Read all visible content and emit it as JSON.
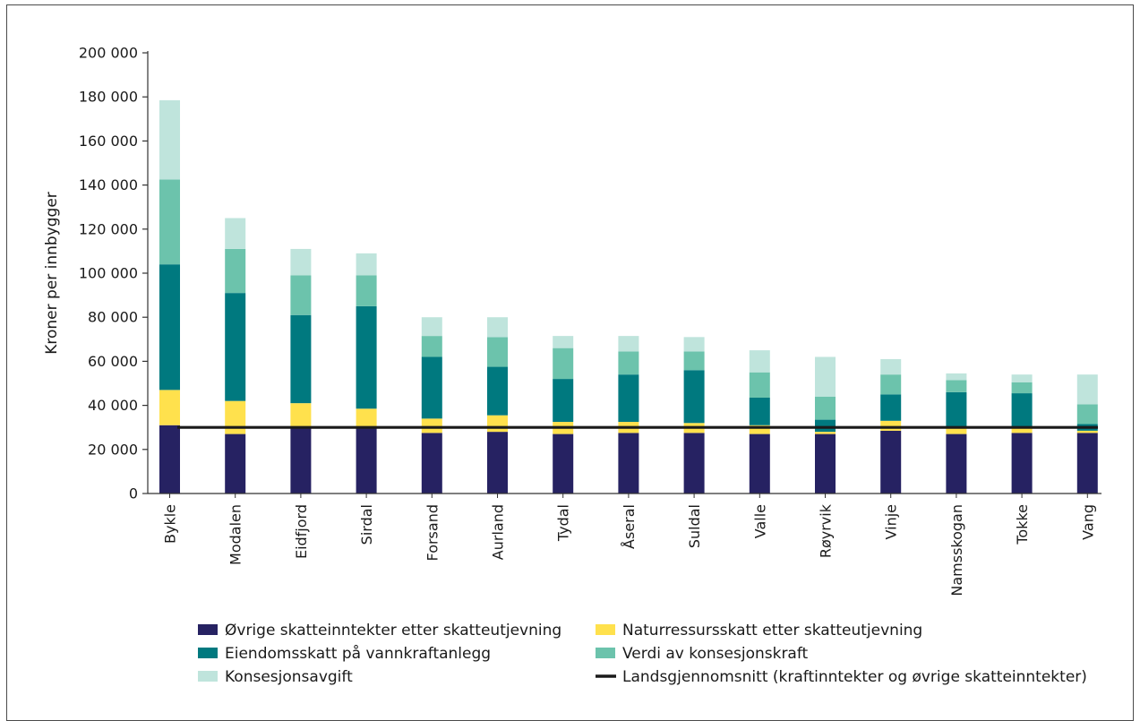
{
  "chart_data": {
    "type": "bar",
    "stacked": true,
    "title": "",
    "xlabel": "",
    "ylabel": "Kroner per innbygger",
    "ylim": [
      0,
      200000
    ],
    "yticks": [
      0,
      20000,
      40000,
      60000,
      80000,
      100000,
      120000,
      140000,
      160000,
      180000,
      200000
    ],
    "ytick_labels": [
      "0",
      "20 000",
      "40 000",
      "60 000",
      "80 000",
      "100 000",
      "120 000",
      "140 000",
      "160 000",
      "180 000",
      "200 000"
    ],
    "grid": false,
    "legend_position": "bottom",
    "categories": [
      "Bykle",
      "Modalen",
      "Eidfjord",
      "Sirdal",
      "Forsand",
      "Aurland",
      "Tydal",
      "Åseral",
      "Suldal",
      "Valle",
      "Røyrvik",
      "Vinje",
      "Namsskogan",
      "Tokke",
      "Vang"
    ],
    "series": [
      {
        "name": "Øvrige skatteinntekter etter skatteutjevning",
        "color": "#262262",
        "values": [
          31000,
          27000,
          30000,
          30500,
          27500,
          28000,
          27000,
          27500,
          27500,
          27000,
          27000,
          28500,
          27000,
          27500,
          27500
        ]
      },
      {
        "name": "Naturressursskatt etter skatteutjevning",
        "color": "#ffe14d",
        "values": [
          16000,
          15000,
          11000,
          8000,
          6500,
          7500,
          5500,
          5000,
          4500,
          4000,
          1000,
          4500,
          3500,
          3000,
          1000
        ]
      },
      {
        "name": "Eiendomsskatt på vannkraftanlegg",
        "color": "#00797f",
        "values": [
          57000,
          49000,
          40000,
          46500,
          28000,
          22000,
          19500,
          21500,
          24000,
          12500,
          5500,
          12000,
          15500,
          15000,
          3000
        ]
      },
      {
        "name": "Verdi av konsesjonskraft",
        "color": "#6cc3ac",
        "values": [
          38500,
          20000,
          18000,
          14000,
          9500,
          13500,
          14000,
          10500,
          8500,
          11500,
          10500,
          9000,
          5500,
          5000,
          9000
        ]
      },
      {
        "name": "Konsesjonsavgift",
        "color": "#bfe4dc",
        "values": [
          36000,
          14000,
          12000,
          10000,
          8500,
          9000,
          5500,
          7000,
          6500,
          10000,
          18000,
          7000,
          3000,
          3500,
          13500
        ]
      }
    ],
    "line": {
      "name": "Landsgjennomsnitt (kraftinntekter og øvrige skatteinntekter)",
      "color": "#1a1a1a",
      "value": 30000
    }
  }
}
